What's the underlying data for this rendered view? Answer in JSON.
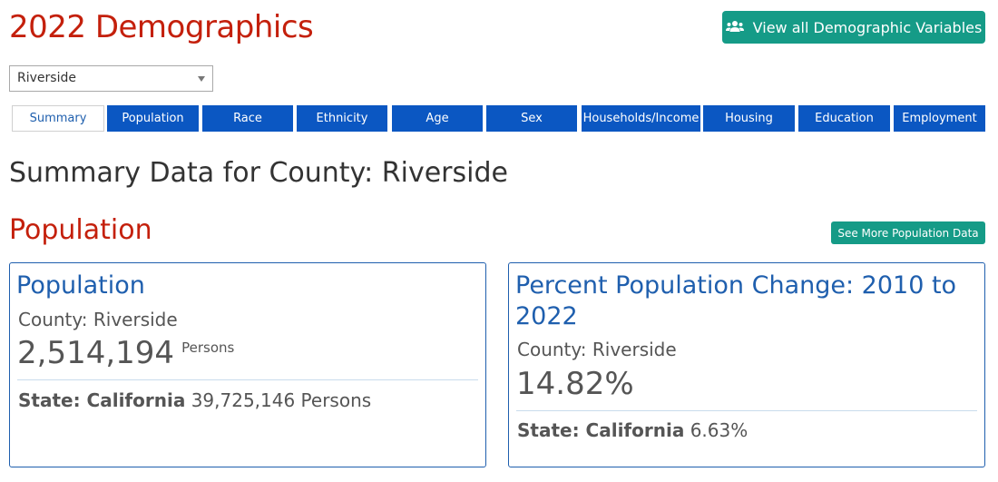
{
  "header": {
    "title": "2022 Demographics",
    "view_all_label": "View all Demographic Variables"
  },
  "county_select": {
    "value": "Riverside"
  },
  "tabs": [
    {
      "label": "Summary",
      "active": true
    },
    {
      "label": "Population"
    },
    {
      "label": "Race"
    },
    {
      "label": "Ethnicity"
    },
    {
      "label": "Age"
    },
    {
      "label": "Sex"
    },
    {
      "label": "Households/Income"
    },
    {
      "label": "Housing"
    },
    {
      "label": "Education"
    },
    {
      "label": "Employment"
    }
  ],
  "summary_title": "Summary Data for County: Riverside",
  "population_section": {
    "title": "Population",
    "see_more_label": "See More Population Data"
  },
  "cards": [
    {
      "title": "Population",
      "county_label": "County: Riverside",
      "value": "2,514,194",
      "unit": "Persons",
      "state_label": "State: California",
      "state_value": "39,725,146 Persons"
    },
    {
      "title": "Percent Population Change: 2010 to 2022",
      "county_label": "County: Riverside",
      "value": "14.82%",
      "unit": "",
      "state_label": "State: California",
      "state_value": "6.63%"
    }
  ],
  "colors": {
    "title_red": "#c4200c",
    "teal_button": "#159b87",
    "tab_blue": "#0b57c2",
    "link_blue": "#1f5fae"
  },
  "icons": {
    "view_all": "users-icon",
    "select": "chevron-down-icon"
  }
}
